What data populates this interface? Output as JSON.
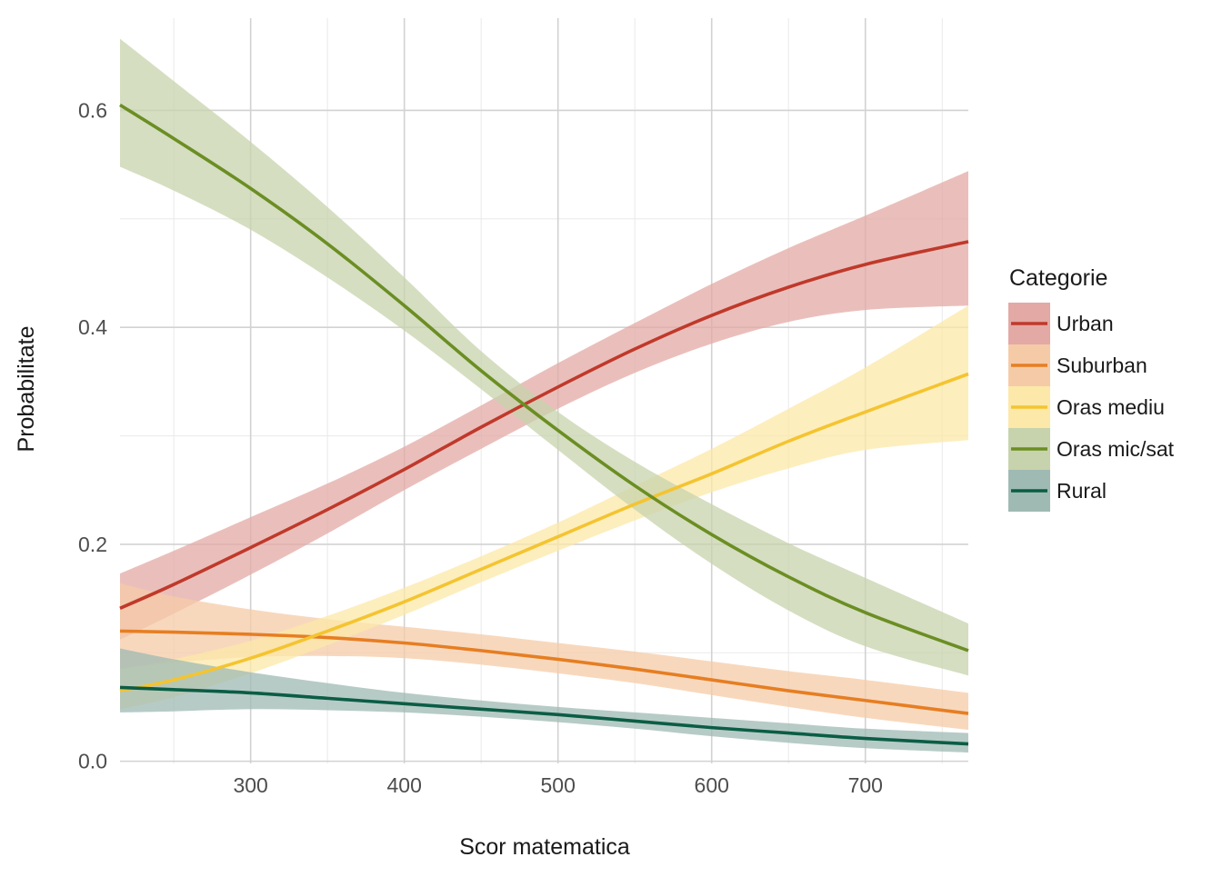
{
  "chart_data": {
    "type": "line",
    "title": "",
    "xlabel": "Scor matematica",
    "ylabel": "Probabilitate",
    "xlim": [
      215,
      767
    ],
    "ylim": [
      -0.002,
      0.685
    ],
    "x_ticks": [
      300,
      400,
      500,
      600,
      700
    ],
    "y_ticks": [
      0.0,
      0.2,
      0.4,
      0.6
    ],
    "x_tick_labels": [
      "300",
      "400",
      "500",
      "600",
      "700"
    ],
    "y_tick_labels": [
      "0.0",
      "0.2",
      "0.4",
      "0.6"
    ],
    "grid": true,
    "legend": {
      "title": "Categorie",
      "position": "right"
    },
    "x": [
      215,
      250,
      300,
      350,
      400,
      450,
      500,
      550,
      600,
      650,
      700,
      767
    ],
    "series": [
      {
        "name": "Urban",
        "color": "#c0392b",
        "band_color": "#e3a9a4",
        "values": [
          0.141,
          0.163,
          0.197,
          0.232,
          0.269,
          0.308,
          0.345,
          0.38,
          0.411,
          0.437,
          0.458,
          0.479
        ],
        "lower": [
          0.112,
          0.136,
          0.172,
          0.21,
          0.25,
          0.288,
          0.325,
          0.358,
          0.385,
          0.405,
          0.416,
          0.42
        ],
        "upper": [
          0.173,
          0.194,
          0.225,
          0.256,
          0.29,
          0.328,
          0.367,
          0.404,
          0.44,
          0.473,
          0.503,
          0.544
        ]
      },
      {
        "name": "Suburban",
        "color": "#e67e22",
        "band_color": "#f5cba7",
        "values": [
          0.12,
          0.119,
          0.117,
          0.114,
          0.109,
          0.102,
          0.094,
          0.085,
          0.075,
          0.065,
          0.056,
          0.044
        ],
        "lower": [
          0.085,
          0.091,
          0.096,
          0.097,
          0.095,
          0.089,
          0.081,
          0.072,
          0.061,
          0.05,
          0.04,
          0.029
        ],
        "upper": [
          0.164,
          0.152,
          0.14,
          0.131,
          0.124,
          0.117,
          0.109,
          0.101,
          0.092,
          0.083,
          0.075,
          0.063
        ]
      },
      {
        "name": "Oras mediu",
        "color": "#f4c430",
        "band_color": "#fce8a8",
        "values": [
          0.065,
          0.075,
          0.095,
          0.12,
          0.147,
          0.177,
          0.207,
          0.237,
          0.265,
          0.295,
          0.322,
          0.357
        ],
        "lower": [
          0.048,
          0.059,
          0.081,
          0.107,
          0.135,
          0.165,
          0.194,
          0.222,
          0.248,
          0.27,
          0.287,
          0.296
        ],
        "upper": [
          0.085,
          0.094,
          0.111,
          0.134,
          0.16,
          0.189,
          0.22,
          0.254,
          0.288,
          0.325,
          0.363,
          0.42
        ]
      },
      {
        "name": "Oras mic/sat",
        "color": "#6b8e23",
        "band_color": "#c7d3ac",
        "values": [
          0.605,
          0.574,
          0.528,
          0.477,
          0.42,
          0.36,
          0.305,
          0.254,
          0.209,
          0.17,
          0.137,
          0.102
        ],
        "lower": [
          0.548,
          0.526,
          0.49,
          0.446,
          0.397,
          0.343,
          0.287,
          0.232,
          0.182,
          0.139,
          0.106,
          0.079
        ],
        "upper": [
          0.666,
          0.627,
          0.571,
          0.511,
          0.446,
          0.378,
          0.322,
          0.276,
          0.237,
          0.201,
          0.169,
          0.127
        ]
      },
      {
        "name": "Rural",
        "color": "#0b5d45",
        "band_color": "#9fbab3",
        "values": [
          0.068,
          0.066,
          0.063,
          0.058,
          0.053,
          0.048,
          0.043,
          0.037,
          0.031,
          0.026,
          0.021,
          0.016
        ],
        "lower": [
          0.045,
          0.046,
          0.048,
          0.047,
          0.045,
          0.041,
          0.036,
          0.03,
          0.023,
          0.017,
          0.012,
          0.008
        ],
        "upper": [
          0.104,
          0.094,
          0.082,
          0.072,
          0.063,
          0.056,
          0.05,
          0.045,
          0.04,
          0.035,
          0.03,
          0.026
        ]
      }
    ]
  }
}
